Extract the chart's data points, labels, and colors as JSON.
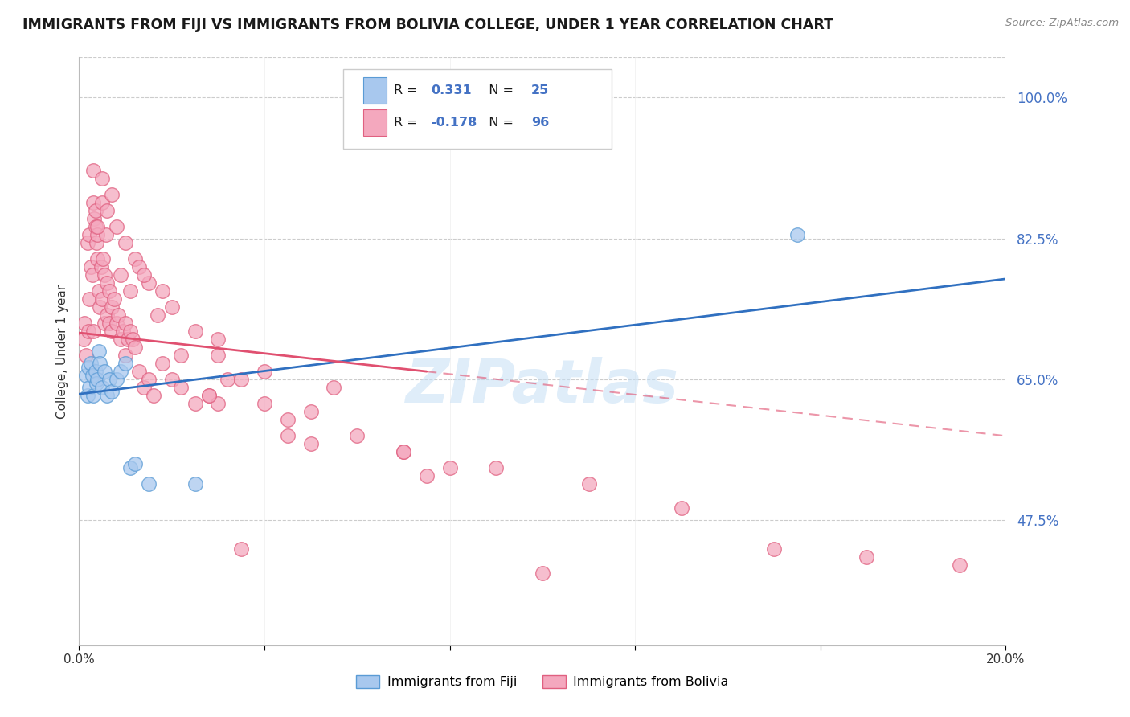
{
  "title": "IMMIGRANTS FROM FIJI VS IMMIGRANTS FROM BOLIVIA COLLEGE, UNDER 1 YEAR CORRELATION CHART",
  "source": "Source: ZipAtlas.com",
  "ylabel": "College, Under 1 year",
  "yticks": [
    47.5,
    65.0,
    82.5,
    100.0
  ],
  "ytick_labels": [
    "47.5%",
    "65.0%",
    "82.5%",
    "100.0%"
  ],
  "xmin": 0.0,
  "xmax": 20.0,
  "ymin": 32.0,
  "ymax": 105.0,
  "fiji_color": "#A8C8EE",
  "fiji_edge_color": "#5A9BD5",
  "bolivia_color": "#F4A8BE",
  "bolivia_edge_color": "#E06080",
  "fiji_line_color": "#3070C0",
  "bolivia_line_color": "#E05070",
  "watermark": "ZIPatlas",
  "legend_text_color": "#1A1A1A",
  "legend_value_color": "#4472C4",
  "fiji_R_text": "R = ",
  "fiji_R_val": "0.331",
  "fiji_N_text": "N = ",
  "fiji_N_val": "25",
  "bolivia_R_text": "R = ",
  "bolivia_R_val": "-0.178",
  "bolivia_N_text": "N = ",
  "bolivia_N_val": "96",
  "fiji_line_x0": 0.0,
  "fiji_line_y0": 63.2,
  "fiji_line_x1": 20.0,
  "fiji_line_y1": 77.5,
  "bolivia_line_x0": 0.0,
  "bolivia_line_y0": 70.8,
  "bolivia_line_x1": 20.0,
  "bolivia_line_y1": 58.0,
  "bolivia_solid_end_x": 7.5,
  "fiji_scatter_x": [
    0.15,
    0.18,
    0.2,
    0.22,
    0.25,
    0.28,
    0.3,
    0.35,
    0.38,
    0.4,
    0.42,
    0.45,
    0.5,
    0.55,
    0.6,
    0.65,
    0.7,
    0.8,
    0.9,
    1.0,
    1.1,
    1.2,
    1.5,
    2.5,
    15.5
  ],
  "fiji_scatter_y": [
    65.5,
    63.0,
    66.5,
    64.0,
    67.0,
    65.5,
    63.0,
    66.0,
    64.5,
    65.0,
    68.5,
    67.0,
    64.0,
    66.0,
    63.0,
    65.0,
    63.5,
    65.0,
    66.0,
    67.0,
    54.0,
    54.5,
    52.0,
    52.0,
    83.0
  ],
  "bolivia_scatter_x": [
    0.1,
    0.12,
    0.15,
    0.18,
    0.2,
    0.22,
    0.22,
    0.25,
    0.28,
    0.3,
    0.3,
    0.32,
    0.35,
    0.35,
    0.38,
    0.4,
    0.4,
    0.42,
    0.45,
    0.48,
    0.5,
    0.5,
    0.52,
    0.55,
    0.55,
    0.58,
    0.6,
    0.6,
    0.65,
    0.65,
    0.7,
    0.7,
    0.75,
    0.8,
    0.85,
    0.9,
    0.95,
    1.0,
    1.0,
    1.05,
    1.1,
    1.15,
    1.2,
    1.3,
    1.4,
    1.5,
    1.6,
    1.8,
    2.0,
    2.2,
    2.5,
    2.8,
    3.0,
    3.2,
    3.5,
    4.0,
    4.5,
    5.0,
    6.0,
    7.0,
    8.0,
    2.2,
    3.5,
    0.3,
    0.5,
    0.7,
    0.8,
    1.0,
    1.2,
    1.3,
    1.5,
    1.8,
    2.0,
    2.5,
    3.0,
    4.0,
    5.5,
    7.5,
    10.0,
    3.0,
    5.0,
    7.0,
    9.0,
    11.0,
    13.0,
    15.0,
    17.0,
    19.0,
    0.4,
    0.6,
    0.9,
    1.1,
    1.4,
    1.7,
    2.8,
    4.5
  ],
  "bolivia_scatter_y": [
    70.0,
    72.0,
    68.0,
    82.0,
    71.0,
    83.0,
    75.0,
    79.0,
    78.0,
    71.0,
    87.0,
    85.0,
    86.0,
    84.0,
    82.0,
    80.0,
    83.0,
    76.0,
    74.0,
    79.0,
    75.0,
    87.0,
    80.0,
    78.0,
    72.0,
    83.0,
    77.0,
    73.0,
    76.0,
    72.0,
    74.0,
    71.0,
    75.0,
    72.0,
    73.0,
    70.0,
    71.0,
    72.0,
    68.0,
    70.0,
    71.0,
    70.0,
    69.0,
    66.0,
    64.0,
    65.0,
    63.0,
    67.0,
    65.0,
    64.0,
    62.0,
    63.0,
    62.0,
    65.0,
    65.0,
    62.0,
    60.0,
    61.0,
    58.0,
    56.0,
    54.0,
    68.0,
    44.0,
    91.0,
    90.0,
    88.0,
    84.0,
    82.0,
    80.0,
    79.0,
    77.0,
    76.0,
    74.0,
    71.0,
    70.0,
    66.0,
    64.0,
    53.0,
    41.0,
    68.0,
    57.0,
    56.0,
    54.0,
    52.0,
    49.0,
    44.0,
    43.0,
    42.0,
    84.0,
    86.0,
    78.0,
    76.0,
    78.0,
    73.0,
    63.0,
    58.0
  ]
}
